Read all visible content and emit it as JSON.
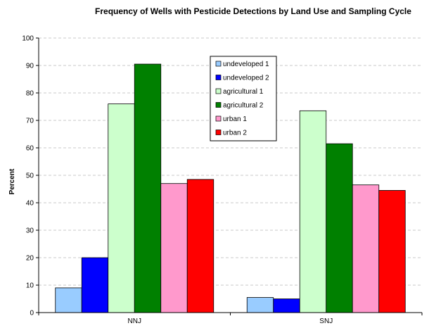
{
  "chart_data": {
    "type": "bar",
    "title": "Frequency of Wells with Pesticide Detections by Land Use and Sampling Cycle",
    "xlabel": "",
    "ylabel": "Percent",
    "categories": [
      "NNJ",
      "SNJ"
    ],
    "ylim": [
      0,
      100
    ],
    "yticks": [
      0,
      10,
      20,
      30,
      40,
      50,
      60,
      70,
      80,
      90,
      100
    ],
    "grid": true,
    "legend_position": "top-center",
    "series": [
      {
        "name": "undeveloped 1",
        "color": "#99ccff",
        "values": [
          9,
          5.5
        ]
      },
      {
        "name": "undeveloped 2",
        "color": "#0000ff",
        "values": [
          20,
          5
        ]
      },
      {
        "name": "agricultural 1",
        "color": "#ccffcc",
        "values": [
          76,
          73.5
        ]
      },
      {
        "name": "agricultural 2",
        "color": "#008000",
        "values": [
          90.5,
          61.5
        ]
      },
      {
        "name": "urban 1",
        "color": "#ff99cc",
        "values": [
          47,
          46.5
        ]
      },
      {
        "name": "urban 2",
        "color": "#ff0000",
        "values": [
          48.5,
          44.5
        ]
      }
    ]
  }
}
